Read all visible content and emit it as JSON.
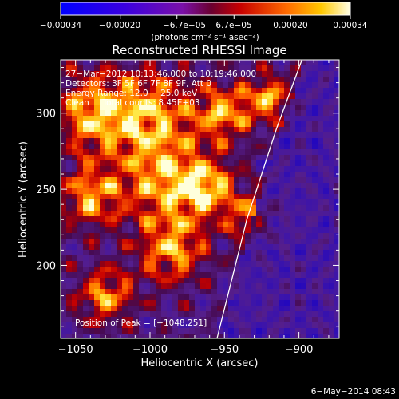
{
  "colorbar": {
    "ticks": [
      "−0.00034",
      "−0.00020",
      "−6.7e−05",
      "6.7e−05",
      "0.00020",
      "0.00034"
    ],
    "tick_values": [
      -0.00034,
      -0.0002,
      -6.7e-05,
      6.7e-05,
      0.0002,
      0.00034
    ],
    "range": [
      -0.00034,
      0.00034
    ],
    "unit_label": "(photons cm⁻² s⁻¹ asec⁻²)"
  },
  "chart_data": {
    "type": "heatmap",
    "title": "Reconstructed RHESSI Image",
    "xlabel": "Heliocentric X (arcsec)",
    "ylabel": "Heliocentric Y (arcsec)",
    "xlim": [
      -1060,
      -873
    ],
    "ylim": [
      152,
      335
    ],
    "xticks": [
      -1050,
      -1000,
      -950,
      -900
    ],
    "xtick_labels": [
      "−1050",
      "−1000",
      "−950",
      "−900"
    ],
    "yticks": [
      200,
      250,
      300
    ],
    "ytick_labels": [
      "200",
      "250",
      "300"
    ],
    "limb_line": [
      [
        -955,
        152
      ],
      [
        -935,
        230
      ],
      [
        -915,
        290
      ],
      [
        -898,
        335
      ]
    ],
    "bright_regions": [
      {
        "x": -1040,
        "y": 300,
        "r": 25
      },
      {
        "x": -1000,
        "y": 300,
        "r": 30
      },
      {
        "x": -990,
        "y": 255,
        "r": 28
      },
      {
        "x": -985,
        "y": 210,
        "r": 22
      },
      {
        "x": -1040,
        "y": 245,
        "r": 20
      },
      {
        "x": -950,
        "y": 300,
        "r": 18
      },
      {
        "x": -920,
        "y": 310,
        "r": 15
      },
      {
        "x": -960,
        "y": 250,
        "r": 18
      },
      {
        "x": -1030,
        "y": 180,
        "r": 18
      },
      {
        "x": -930,
        "y": 230,
        "r": 15
      }
    ],
    "info_lines": [
      "27−Mar−2012 10:13:46.000 to 10:19:46.000",
      "Detectors: 3F 5F 6F 7F 8F 9F, Att 0",
      "Energy Range: 12.0 − 25.0 keV",
      "Clean     Total counts: 8.45E+03"
    ],
    "peak_label": "Position of Peak = [−1048,251]",
    "peak": [
      -1048,
      251
    ]
  },
  "footer": {
    "date": "6−May−2014 08:43"
  }
}
